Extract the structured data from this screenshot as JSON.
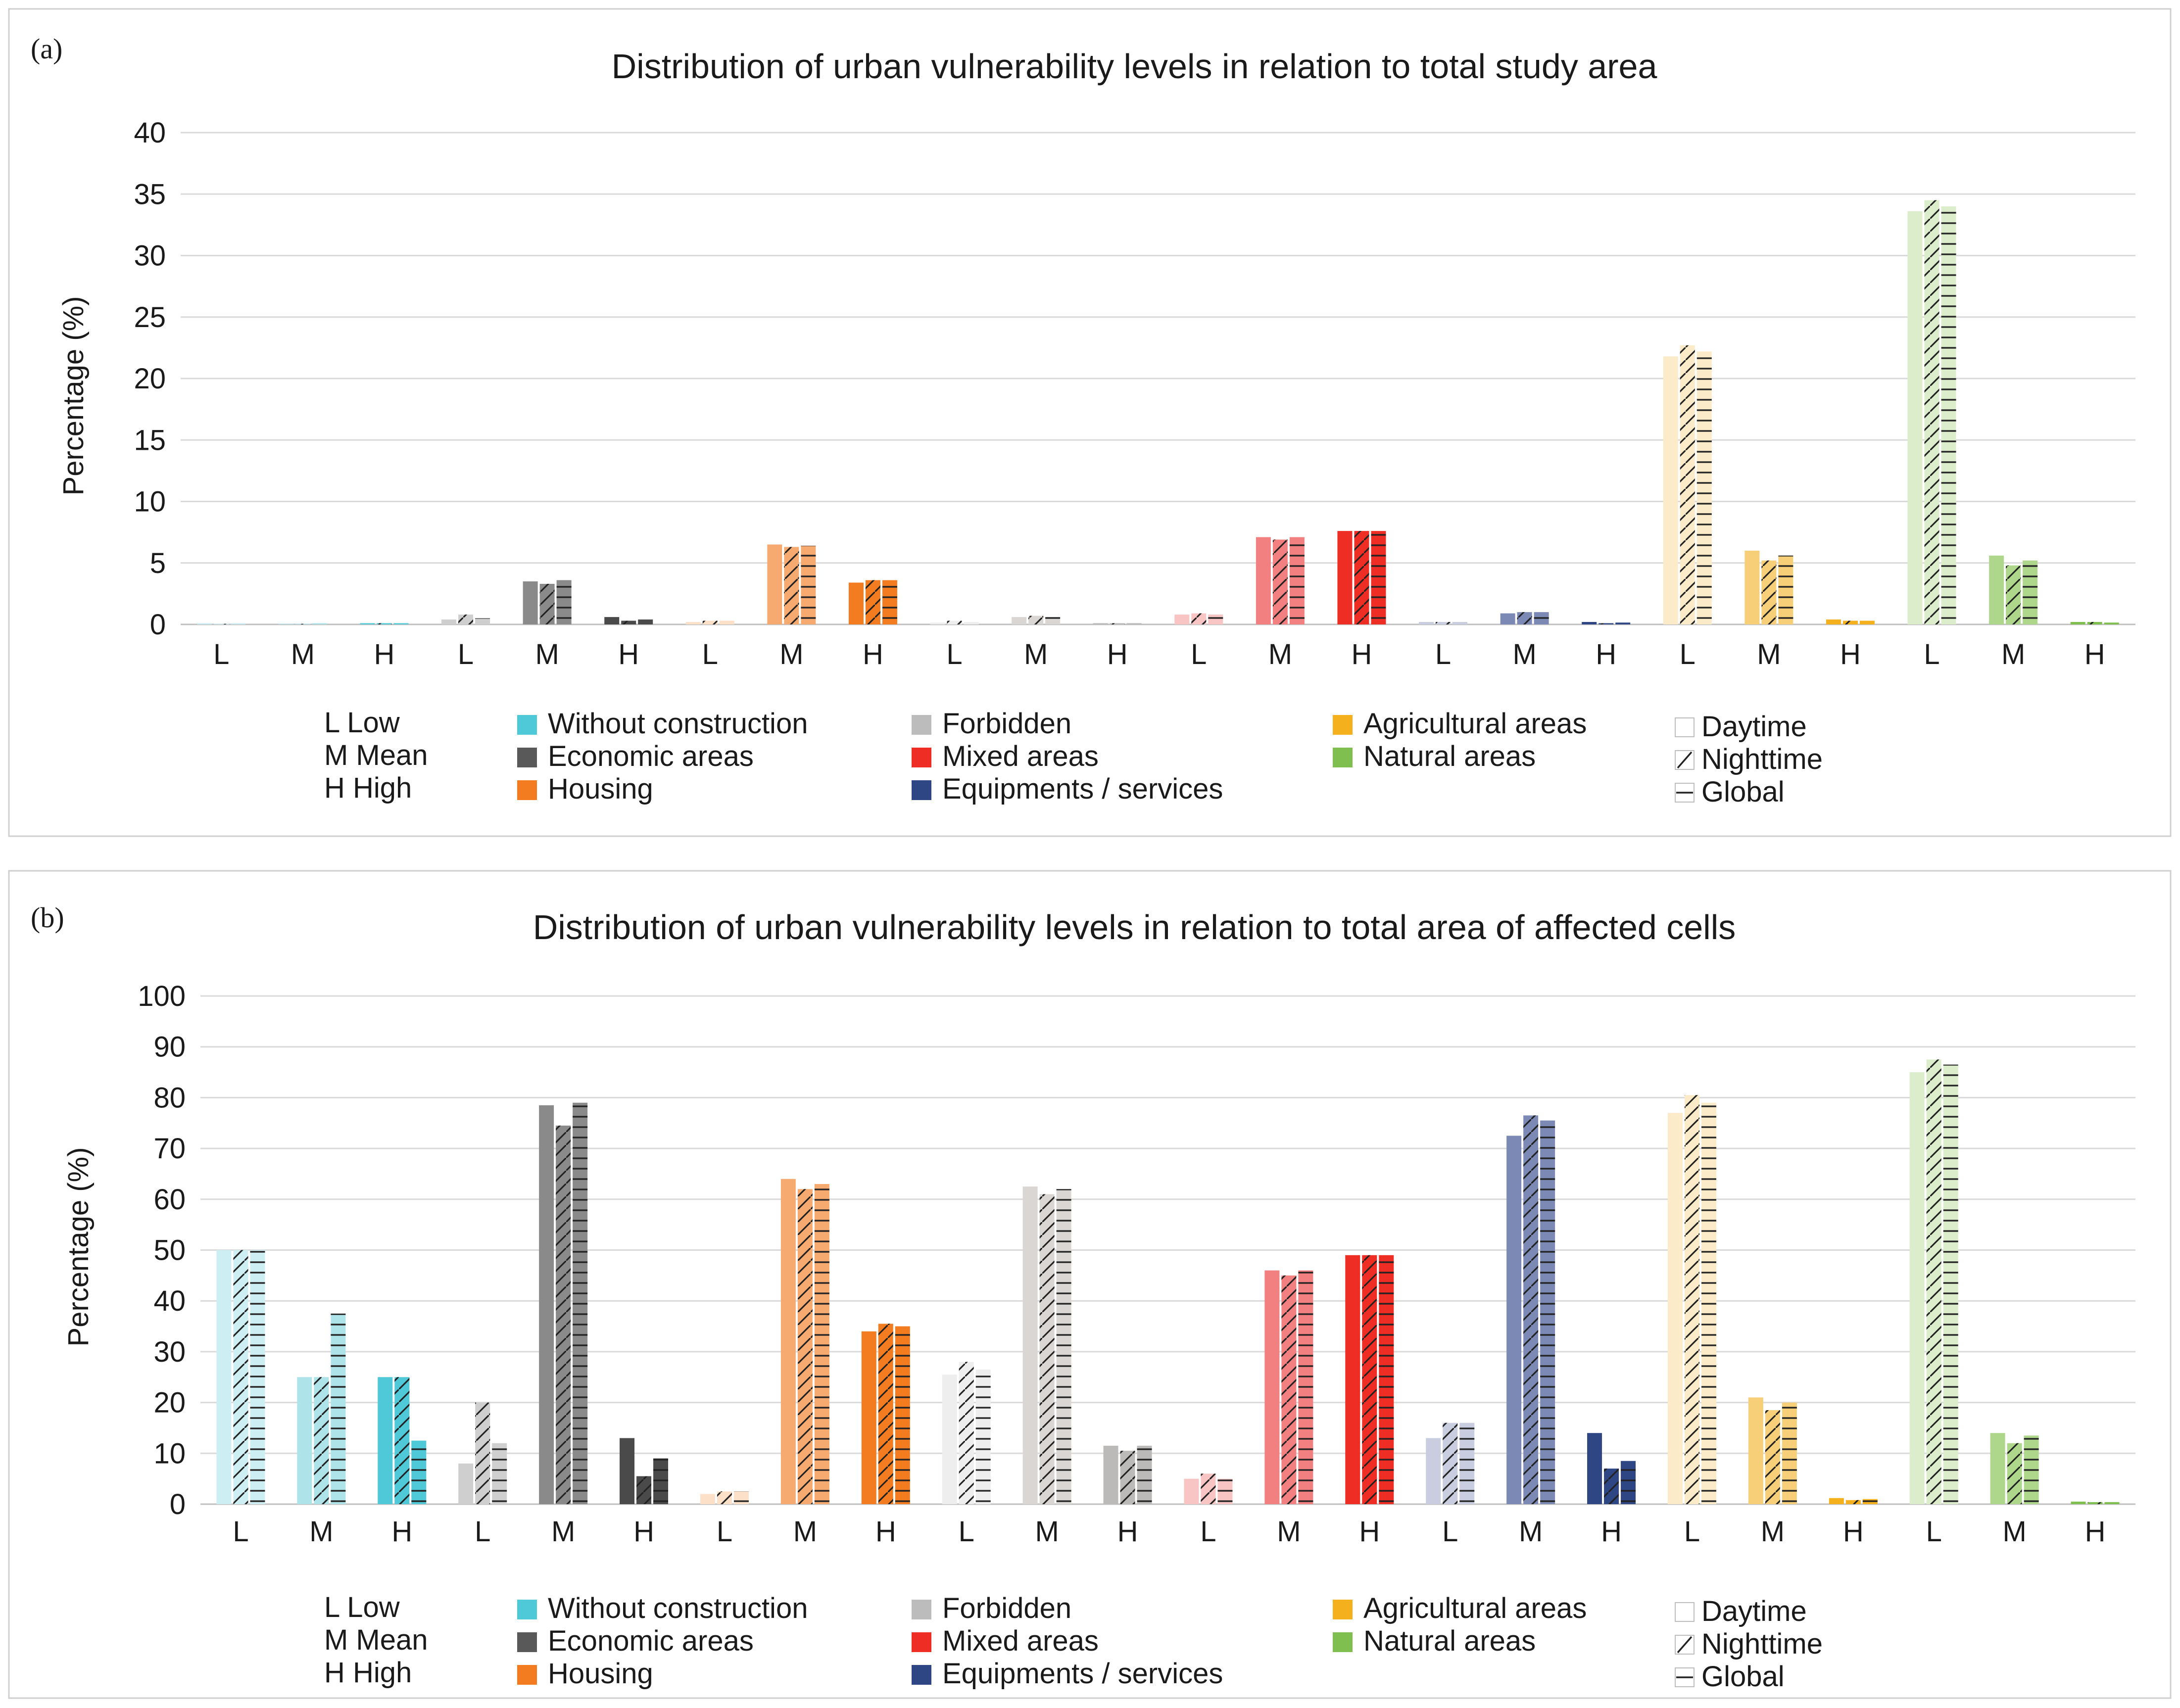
{
  "chart_data": [
    {
      "panel": "(a)",
      "type": "bar",
      "title": "Distribution of urban vulnerability levels in relation to total study area",
      "ylabel": "Percentage (%)",
      "ylim": [
        0,
        40
      ],
      "yticks": [
        "0",
        "5",
        "10",
        "15",
        "20",
        "25",
        "30",
        "35",
        "40"
      ],
      "categories": [
        "L",
        "M",
        "H",
        "L",
        "M",
        "H",
        "L",
        "M",
        "H",
        "L",
        "M",
        "H",
        "L",
        "M",
        "H",
        "L",
        "M",
        "H",
        "L",
        "M",
        "H",
        "L",
        "M",
        "H"
      ],
      "groups": [
        "Without construction",
        "Economic areas",
        "Housing",
        "Forbidden",
        "Mixed areas",
        "Equipments / services",
        "Agricultural areas",
        "Natural areas"
      ],
      "series": [
        {
          "name": "Daytime",
          "values": [
            0.1,
            0.05,
            0.1,
            0.4,
            3.5,
            0.6,
            0.2,
            6.5,
            3.4,
            0.15,
            0.6,
            0.1,
            0.8,
            7.1,
            7.6,
            0.2,
            0.9,
            0.2,
            21.8,
            6.0,
            0.4,
            33.6,
            5.6,
            0.2
          ]
        },
        {
          "name": "Nighttime",
          "values": [
            0.05,
            0.05,
            0.1,
            0.8,
            3.3,
            0.3,
            0.3,
            6.3,
            3.6,
            0.3,
            0.7,
            0.1,
            0.9,
            6.9,
            7.6,
            0.2,
            1.0,
            0.1,
            22.7,
            5.2,
            0.3,
            34.5,
            4.8,
            0.2
          ]
        },
        {
          "name": "Global",
          "values": [
            0.1,
            0.1,
            0.1,
            0.5,
            3.6,
            0.4,
            0.3,
            6.4,
            3.6,
            0.2,
            0.6,
            0.1,
            0.8,
            7.1,
            7.6,
            0.2,
            1.0,
            0.15,
            22.2,
            5.6,
            0.3,
            34.0,
            5.2,
            0.15
          ]
        }
      ]
    },
    {
      "panel": "(b)",
      "type": "bar",
      "title": "Distribution of urban vulnerability levels in relation to total area of affected cells",
      "ylabel": "Percentage (%)",
      "ylim": [
        0,
        100
      ],
      "yticks": [
        "0",
        "10",
        "20",
        "30",
        "40",
        "50",
        "60",
        "70",
        "80",
        "90",
        "100"
      ],
      "categories": [
        "L",
        "M",
        "H",
        "L",
        "M",
        "H",
        "L",
        "M",
        "H",
        "L",
        "M",
        "H",
        "L",
        "M",
        "H",
        "L",
        "M",
        "H",
        "L",
        "M",
        "H",
        "L",
        "M",
        "H"
      ],
      "groups": [
        "Without construction",
        "Economic areas",
        "Housing",
        "Forbidden",
        "Mixed areas",
        "Equipments / services",
        "Agricultural areas",
        "Natural areas"
      ],
      "series": [
        {
          "name": "Daytime",
          "values": [
            50,
            25,
            25,
            8,
            78.5,
            13,
            2,
            64,
            34,
            25.5,
            62.5,
            11.5,
            5,
            46,
            49,
            13,
            72.5,
            14,
            77,
            21,
            1.2,
            85,
            14,
            0.5
          ]
        },
        {
          "name": "Nighttime",
          "values": [
            50,
            25,
            25,
            20,
            74.5,
            5.5,
            2.5,
            62,
            35.5,
            28,
            61,
            10.5,
            6,
            45,
            49,
            16,
            76.5,
            7,
            80.5,
            18.5,
            0.8,
            87.5,
            12,
            0.4
          ]
        },
        {
          "name": "Global",
          "values": [
            50,
            37.5,
            12.5,
            12,
            79,
            9,
            2.5,
            63,
            35,
            26.5,
            62,
            11.5,
            5,
            46,
            49,
            16,
            75.5,
            8.5,
            79,
            20,
            1,
            86.5,
            13.5,
            0.4
          ]
        }
      ]
    }
  ],
  "legend": {
    "levels": [
      "L Low",
      "M Mean",
      "H High"
    ],
    "categories": [
      {
        "name": "Without construction",
        "color": "#4fc8d8"
      },
      {
        "name": "Economic areas",
        "color": "#595959"
      },
      {
        "name": "Housing",
        "color": "#f47c20"
      },
      {
        "name": "Forbidden",
        "color": "#bcbcbc"
      },
      {
        "name": "Mixed areas",
        "color": "#ee2d24"
      },
      {
        "name": "Equipments / services",
        "color": "#2f4684"
      },
      {
        "name": "Agricultural areas",
        "color": "#f5b01d"
      },
      {
        "name": "Natural areas",
        "color": "#7ebf50"
      }
    ],
    "periods": [
      "Daytime",
      "Nighttime",
      "Global"
    ]
  },
  "level_shades": {
    "Without construction": [
      "#cdeef2",
      "#aee3ea",
      "#4fc8d8"
    ],
    "Economic areas": [
      "#cfcfcf",
      "#8a8a8a",
      "#4a4a4a"
    ],
    "Housing": [
      "#fde0c8",
      "#f7aa70",
      "#f47c20"
    ],
    "Forbidden": [
      "#eeeeee",
      "#d9d6d3",
      "#bcbab8"
    ],
    "Mixed areas": [
      "#f8c4c4",
      "#f28080",
      "#ee2d24"
    ],
    "Equipments / services": [
      "#c8cde0",
      "#7c89b5",
      "#2f4684"
    ],
    "Agricultural areas": [
      "#fbebc8",
      "#f7cf78",
      "#f5b01d"
    ],
    "Natural areas": [
      "#dcedcc",
      "#aed78b",
      "#7ebf50"
    ]
  }
}
